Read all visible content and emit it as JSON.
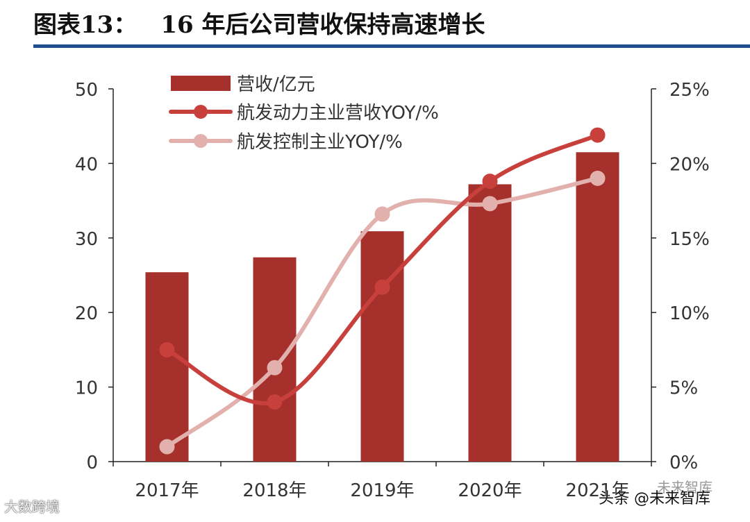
{
  "figure": {
    "label": "图表13：",
    "title": "16 年后公司营收保持高速增长"
  },
  "chart_data": {
    "type": "bar+line",
    "categories": [
      "2017年",
      "2018年",
      "2019年",
      "2020年",
      "2021年"
    ],
    "left_axis": {
      "ticks": [
        "0",
        "10",
        "20",
        "30",
        "40",
        "50"
      ],
      "range": [
        0,
        50
      ]
    },
    "right_axis": {
      "ticks": [
        "0%",
        "5%",
        "10%",
        "15%",
        "20%",
        "25%"
      ],
      "range": [
        0,
        25
      ]
    },
    "series": [
      {
        "name": "营收/亿元",
        "kind": "bar",
        "axis": "left",
        "color": "#a5302c",
        "values": [
          25.4,
          27.4,
          30.9,
          37.2,
          41.5
        ]
      },
      {
        "name": "航发动力主业营收YOY/%",
        "kind": "line",
        "axis": "right",
        "color": "#c8403c",
        "values": [
          7.5,
          4.0,
          11.7,
          18.8,
          21.9
        ]
      },
      {
        "name": "航发控制主业YOY/%",
        "kind": "line",
        "axis": "right",
        "color": "#e2b1ad",
        "values": [
          1.0,
          6.3,
          16.6,
          17.3,
          19.0
        ]
      }
    ]
  },
  "watermarks": {
    "left": "大数跨境",
    "right": "头条 @未来智库",
    "corner": "未来智库"
  }
}
